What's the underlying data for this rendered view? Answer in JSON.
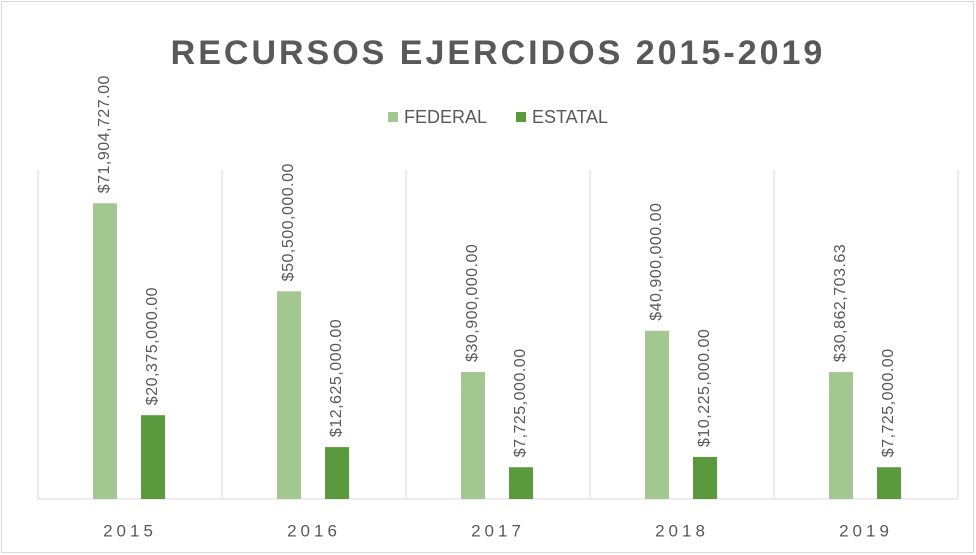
{
  "chart_data": {
    "type": "bar",
    "title": "RECURSOS EJERCIDOS 2015-2019",
    "categories": [
      "2015",
      "2016",
      "2017",
      "2018",
      "2019"
    ],
    "series": [
      {
        "name": "FEDERAL",
        "color": "#a2c791",
        "values": [
          71904727,
          50500000,
          30900000,
          40900000,
          30862703.63
        ],
        "value_labels": [
          "$71,904,727.00",
          "$50,500,000.00",
          "$30,900,000.00",
          "$40,900,000.00",
          "$30,862,703.63"
        ]
      },
      {
        "name": "ESTATAL",
        "color": "#5b9a3c",
        "values": [
          20375000,
          12625000,
          7725000,
          10225000,
          7725000
        ],
        "value_labels": [
          "$20,375,000.00",
          "$12,625,000.00",
          "$7,725,000.00",
          "$10,225,000.00",
          "$7,725,000.00"
        ]
      }
    ],
    "ylim": [
      0,
      80000000
    ],
    "legend": "top"
  }
}
